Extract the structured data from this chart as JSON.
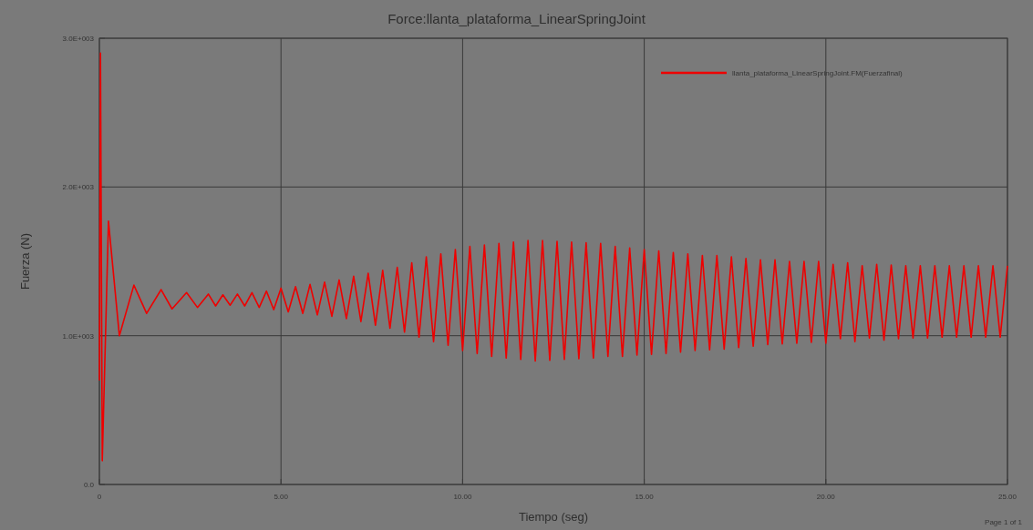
{
  "chart_data": {
    "type": "line",
    "title": "Force:llanta_plataforma_LinearSpringJoint",
    "xlabel": "Tiempo (seg)",
    "ylabel": "Fuerza (N)",
    "annotations": [
      "Page 1 of 1"
    ],
    "xlim": [
      0,
      25
    ],
    "xticks": [
      {
        "value": 0,
        "label": "0"
      },
      {
        "value": 5,
        "label": "5.00"
      },
      {
        "value": 10,
        "label": "10.00"
      },
      {
        "value": 15,
        "label": "15.00"
      },
      {
        "value": 20,
        "label": "20.00"
      },
      {
        "value": 25,
        "label": "25.00"
      }
    ],
    "ylim": [
      0,
      3000
    ],
    "yticks": [
      {
        "value": 0,
        "label": "0.0"
      },
      {
        "value": 1000,
        "label": "1.0E+003"
      },
      {
        "value": 2000,
        "label": "2.0E+003"
      },
      {
        "value": 3000,
        "label": "3.0E+003"
      }
    ],
    "grid": true,
    "legend": "top right",
    "line_style": "solid",
    "series": [
      {
        "name": "llanta_plataforma_LinearSpringJoint.FM(Fuerzafinal)",
        "color": "#ee0000",
        "x": [
          0,
          0.03,
          0.08,
          0.25,
          0.55,
          0.95,
          1.3,
          1.7,
          2.0,
          2.4,
          2.7,
          3.0,
          3.2,
          3.4,
          3.6,
          3.8,
          4.0,
          4.2,
          4.4,
          4.6,
          4.8,
          5.0,
          5.2,
          5.4,
          5.6,
          5.8,
          6.0,
          6.2,
          6.4,
          6.6,
          6.8,
          7.0,
          7.2,
          7.4,
          7.6,
          7.8,
          8.0,
          8.2,
          8.4,
          8.6,
          8.8,
          9.0,
          9.2,
          9.4,
          9.6,
          9.8,
          10.0,
          10.2,
          10.4,
          10.6,
          10.8,
          11.0,
          11.2,
          11.4,
          11.6,
          11.8,
          12.0,
          12.2,
          12.4,
          12.6,
          12.8,
          13.0,
          13.2,
          13.4,
          13.6,
          13.8,
          14.0,
          14.2,
          14.4,
          14.6,
          14.8,
          15.0,
          15.2,
          15.4,
          15.6,
          15.8,
          16.0,
          16.2,
          16.4,
          16.6,
          16.8,
          17.0,
          17.2,
          17.4,
          17.6,
          17.8,
          18.0,
          18.2,
          18.4,
          18.6,
          18.8,
          19.0,
          19.2,
          19.4,
          19.6,
          19.8,
          20.0,
          20.2,
          20.4,
          20.6,
          20.8,
          21.0,
          21.2,
          21.4,
          21.6,
          21.8,
          22.0,
          22.2,
          22.4,
          22.6,
          22.8,
          23.0,
          23.2,
          23.4,
          23.6,
          23.8,
          24.0,
          24.2,
          24.4,
          24.6,
          24.8,
          25.0
        ],
        "values": [
          700,
          2900,
          160,
          1770,
          1000,
          1340,
          1150,
          1310,
          1180,
          1290,
          1190,
          1280,
          1200,
          1275,
          1205,
          1280,
          1200,
          1290,
          1190,
          1300,
          1175,
          1320,
          1160,
          1330,
          1150,
          1345,
          1140,
          1360,
          1130,
          1375,
          1115,
          1400,
          1095,
          1420,
          1070,
          1440,
          1050,
          1460,
          1025,
          1490,
          990,
          1530,
          960,
          1550,
          935,
          1580,
          900,
          1600,
          880,
          1610,
          860,
          1620,
          850,
          1630,
          840,
          1640,
          830,
          1640,
          835,
          1635,
          840,
          1630,
          845,
          1625,
          850,
          1620,
          860,
          1600,
          860,
          1590,
          870,
          1580,
          875,
          1570,
          880,
          1560,
          890,
          1550,
          900,
          1540,
          905,
          1540,
          910,
          1530,
          920,
          1520,
          930,
          1510,
          940,
          1510,
          945,
          1500,
          950,
          1500,
          955,
          1500,
          950,
          1480,
          980,
          1490,
          960,
          1470,
          985,
          1480,
          970,
          1475,
          980,
          1470,
          985,
          1470,
          985,
          1470,
          990,
          1470,
          990,
          1470,
          990,
          1470,
          990,
          1470,
          990,
          1470
        ]
      }
    ]
  }
}
